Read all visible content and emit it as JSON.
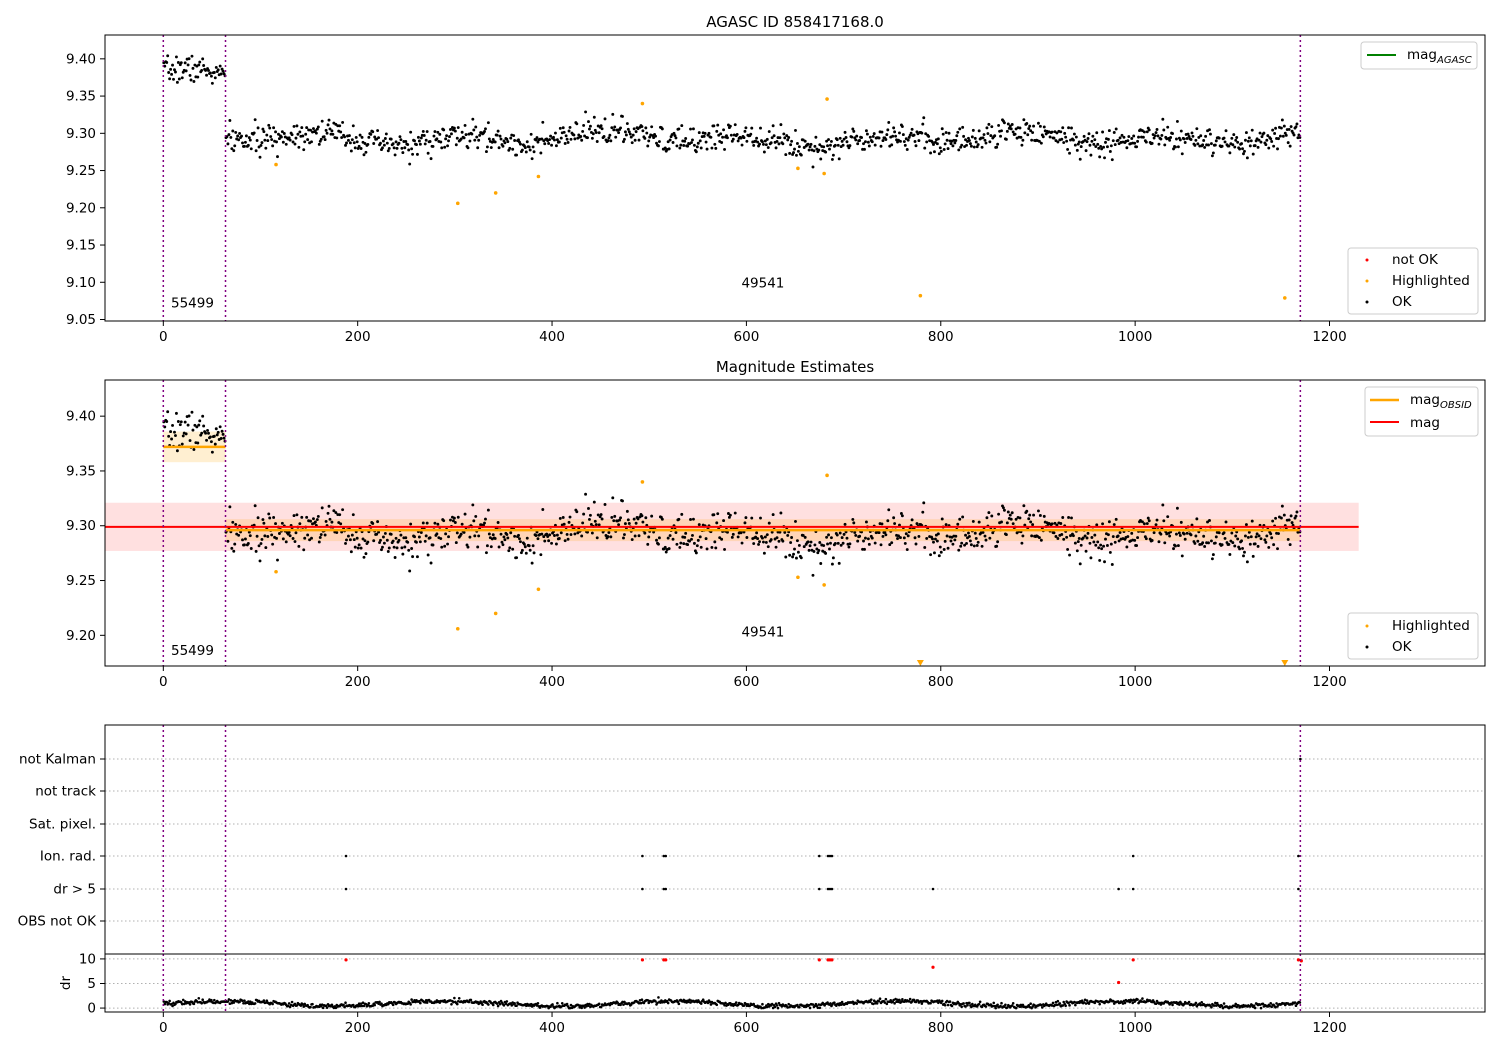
{
  "chart_data": [
    {
      "type": "scatter",
      "title": "AGASC ID 858417168.0",
      "xlim": [
        -60,
        1360
      ],
      "ylim": [
        9.048,
        9.432
      ],
      "xticks": [
        0,
        200,
        400,
        600,
        800,
        1000,
        1200
      ],
      "yticks": [
        9.05,
        9.1,
        9.15,
        9.2,
        9.25,
        9.3,
        9.35,
        9.4
      ],
      "grid": false,
      "obsid_boundaries": [
        0,
        64,
        1170
      ],
      "obsid_labels": [
        {
          "text": "55499",
          "x": 30,
          "y": 9.066
        },
        {
          "text": "49541",
          "x": 617,
          "y": 9.093
        }
      ],
      "segments": [
        {
          "x0": 0,
          "x1": 64,
          "mean": 9.375,
          "amplitude": 0.01,
          "scatter": 0.009
        },
        {
          "x0": 64,
          "x1": 1170,
          "mean": 9.293,
          "amplitude": 0.007,
          "scatter": 0.009
        }
      ],
      "highlighted": [
        {
          "x": 116,
          "y": 9.258
        },
        {
          "x": 303,
          "y": 9.206
        },
        {
          "x": 342,
          "y": 9.22
        },
        {
          "x": 386,
          "y": 9.242
        },
        {
          "x": 493,
          "y": 9.34
        },
        {
          "x": 653,
          "y": 9.253
        },
        {
          "x": 680,
          "y": 9.246
        },
        {
          "x": 683,
          "y": 9.346
        },
        {
          "x": 779,
          "y": 9.082
        },
        {
          "x": 1154,
          "y": 9.079
        }
      ],
      "legend_top": {
        "position": "upper right",
        "entries": [
          {
            "label_main": "mag",
            "label_sub": "AGASC",
            "color": "#008000"
          }
        ]
      },
      "legend_bottom": {
        "position": "lower right",
        "entries": [
          {
            "label": "not OK",
            "color": "#ff0000"
          },
          {
            "label": "Highlighted",
            "color": "#ffa500"
          },
          {
            "label": "OK",
            "color": "#000000"
          }
        ]
      }
    },
    {
      "type": "scatter",
      "title": "Magnitude Estimates",
      "xlim": [
        -60,
        1360
      ],
      "ylim": [
        9.172,
        9.433
      ],
      "xticks": [
        0,
        200,
        400,
        600,
        800,
        1000,
        1200
      ],
      "yticks": [
        9.2,
        9.25,
        9.3,
        9.35,
        9.4
      ],
      "grid": false,
      "obsid_boundaries": [
        0,
        64,
        1170
      ],
      "obsid_labels": [
        {
          "text": "55499",
          "x": 30,
          "y": 9.182
        },
        {
          "text": "49541",
          "x": 617,
          "y": 9.199
        }
      ],
      "mag": {
        "value": 9.299,
        "band": [
          9.277,
          9.321
        ],
        "x_range": [
          -60,
          1230
        ],
        "color": "#ff0000"
      },
      "mag_obsid": [
        {
          "x0": 0,
          "x1": 64,
          "value": 9.372,
          "band": [
            9.358,
            9.386
          ]
        },
        {
          "x0": 64,
          "x1": 1170,
          "value": 9.296,
          "band": [
            9.286,
            9.306
          ]
        }
      ],
      "highlighted": [
        {
          "x": 116,
          "y": 9.258
        },
        {
          "x": 303,
          "y": 9.206
        },
        {
          "x": 342,
          "y": 9.22
        },
        {
          "x": 386,
          "y": 9.242
        },
        {
          "x": 493,
          "y": 9.34
        },
        {
          "x": 653,
          "y": 9.253
        },
        {
          "x": 680,
          "y": 9.246
        },
        {
          "x": 683,
          "y": 9.346
        }
      ],
      "off_axis_markers": [
        779,
        1154
      ],
      "legend_top": {
        "position": "upper right",
        "entries": [
          {
            "label_main": "mag",
            "label_sub": "OBSID",
            "color": "#ffa500"
          },
          {
            "label_main": "mag",
            "label_sub": "",
            "color": "#ff0000"
          }
        ]
      },
      "legend_bottom": {
        "position": "lower right",
        "entries": [
          {
            "label": "Highlighted",
            "color": "#ffa500"
          },
          {
            "label": "OK",
            "color": "#000000"
          }
        ]
      }
    },
    {
      "type": "scatter",
      "title": "",
      "xlim": [
        -60,
        1360
      ],
      "xticks": [
        0,
        200,
        400,
        600,
        800,
        1000,
        1200
      ],
      "grid": true,
      "obsid_boundaries": [
        0,
        64,
        1170
      ],
      "flag_rows": [
        "not Kalman",
        "not track",
        "Sat. pixel.",
        "Ion. rad.",
        "dr > 5",
        "OBS not OK"
      ],
      "flag_points": {
        "Ion. rad.": [
          188,
          493,
          515,
          517,
          675,
          684,
          686,
          688,
          998,
          1168
        ],
        "dr > 5": [
          188,
          493,
          515,
          517,
          675,
          684,
          686,
          688,
          792,
          983,
          998,
          1168
        ],
        "not Kalman": [
          1170
        ]
      },
      "dr": {
        "ylabel": "dr",
        "ylim": [
          -0.8,
          11
        ],
        "yticks": [
          0,
          5,
          10
        ],
        "baseline_mean": 0.9,
        "baseline_amplitude": 0.5,
        "outliers": [
          {
            "x": 188,
            "y": 9.8
          },
          {
            "x": 493,
            "y": 9.8
          },
          {
            "x": 515,
            "y": 9.8
          },
          {
            "x": 517,
            "y": 9.8
          },
          {
            "x": 675,
            "y": 9.8
          },
          {
            "x": 684,
            "y": 9.8
          },
          {
            "x": 686,
            "y": 9.8
          },
          {
            "x": 688,
            "y": 9.8
          },
          {
            "x": 792,
            "y": 8.3
          },
          {
            "x": 983,
            "y": 5.2
          },
          {
            "x": 998,
            "y": 9.8
          },
          {
            "x": 1168,
            "y": 9.8
          },
          {
            "x": 1171,
            "y": 9.6
          }
        ],
        "color": "#ff0000"
      }
    }
  ]
}
